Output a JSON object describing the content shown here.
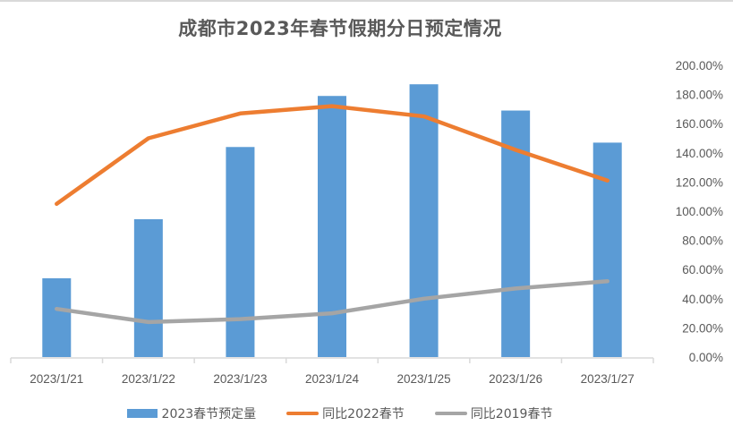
{
  "chart_data": {
    "type": "bar+line",
    "title": "成都市2023年春节假期分日预定情况",
    "categories": [
      "2023/1/21",
      "2023/1/22",
      "2023/1/23",
      "2023/1/24",
      "2023/1/25",
      "2023/1/26",
      "2023/1/27"
    ],
    "series": [
      {
        "name": "2023春节预定量",
        "type": "bar",
        "axis": "primary (hidden, no tick labels)",
        "color": "#5B9BD5",
        "values_relative": [
          54,
          94.5,
          144,
          179,
          187,
          169,
          147
        ]
      },
      {
        "name": "同比2022春节",
        "type": "line",
        "axis": "secondary",
        "color": "#ED7D31",
        "values": [
          105,
          150,
          167,
          172,
          165,
          142,
          121
        ]
      },
      {
        "name": "同比2019春节",
        "type": "line",
        "axis": "secondary",
        "color": "#A5A5A5",
        "values": [
          33,
          24,
          26,
          30,
          40,
          47,
          52
        ]
      }
    ],
    "xlabel": "",
    "ylabel": "",
    "y2_ticks": [
      "0.00%",
      "20.00%",
      "40.00%",
      "60.00%",
      "80.00%",
      "100.00%",
      "120.00%",
      "140.00%",
      "160.00%",
      "180.00%",
      "200.00%"
    ],
    "y2lim": [
      0,
      200
    ],
    "grid": false,
    "legend_position": "bottom"
  },
  "legend": [
    {
      "label": "2023春节预定量",
      "kind": "bar",
      "color": "#5B9BD5"
    },
    {
      "label": "同比2022春节",
      "kind": "line",
      "color": "#ED7D31"
    },
    {
      "label": "同比2019春节",
      "kind": "line",
      "color": "#A5A5A5"
    }
  ]
}
